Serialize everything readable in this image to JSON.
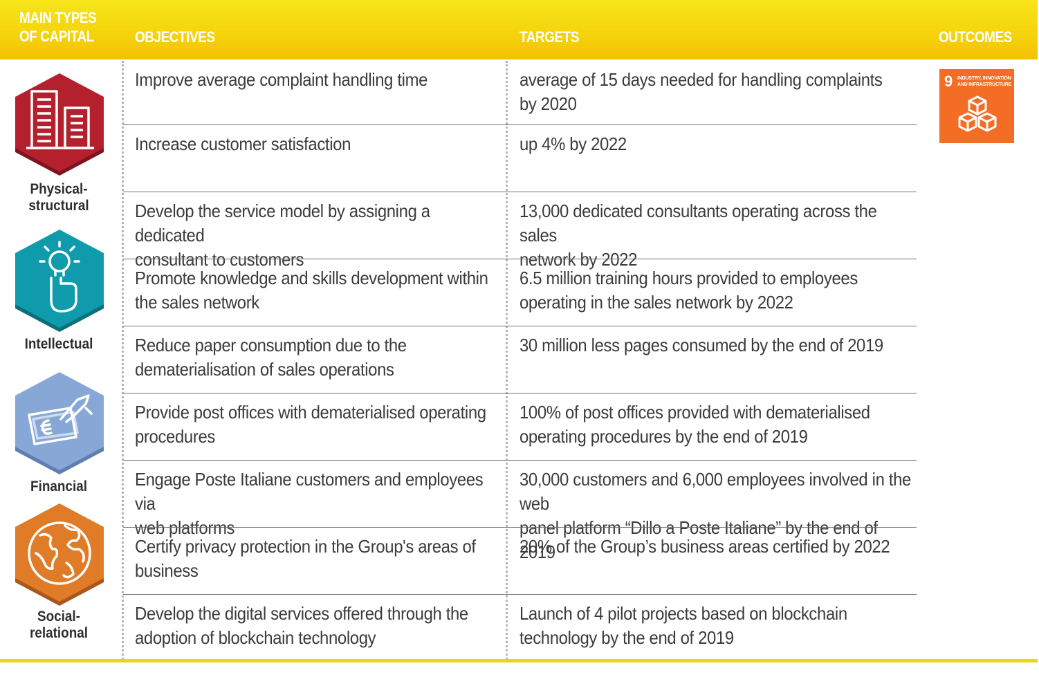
{
  "header": {
    "capital_line1": "MAIN TYPES",
    "capital_line2": "OF CAPITAL",
    "objectives": "OBJECTIVES",
    "targets": "TARGETS",
    "outcomes": "OUTCOMES"
  },
  "capitals": [
    {
      "label_line1": "Physical-",
      "label_line2": "structural",
      "color": "#b5202e",
      "icon": "buildings-icon"
    },
    {
      "label_line1": "Intellectual",
      "label_line2": "",
      "color": "#0f9bab",
      "icon": "lightbulb-hand-icon"
    },
    {
      "label_line1": "Financial",
      "label_line2": "",
      "color": "#87a7d6",
      "icon": "money-hand-icon"
    },
    {
      "label_line1": "Social-",
      "label_line2": "relational",
      "color": "#e07b27",
      "icon": "globe-icon"
    }
  ],
  "rows": [
    {
      "objective_l1": "Improve average complaint handling time",
      "objective_l2": "",
      "target_l1": "average of 15 days needed for handling complaints",
      "target_l2": "by 2020"
    },
    {
      "objective_l1": "Increase customer satisfaction",
      "objective_l2": "",
      "target_l1": "up 4% by 2022",
      "target_l2": ""
    },
    {
      "objective_l1": "Develop the service model by assigning a dedicated",
      "objective_l2": "consultant to customers",
      "target_l1": "13,000 dedicated consultants operating across the sales",
      "target_l2": "network by 2022"
    },
    {
      "objective_l1": "Promote knowledge and skills development within",
      "objective_l2": "the sales network",
      "target_l1": "6.5 million training hours provided to employees",
      "target_l2": "operating in the sales network by 2022"
    },
    {
      "objective_l1": "Reduce paper consumption due to the",
      "objective_l2": "dematerialisation of sales operations",
      "target_l1": "30 million less pages consumed by the end of 2019",
      "target_l2": ""
    },
    {
      "objective_l1": "Provide post offices with dematerialised operating",
      "objective_l2": "procedures",
      "target_l1": "100% of post offices provided with dematerialised",
      "target_l2": "operating procedures by the end of 2019"
    },
    {
      "objective_l1": "Engage Poste Italiane customers and employees via",
      "objective_l2": "web platforms",
      "target_l1": "30,000 customers and 6,000 employees involved in the web",
      "target_l2": "panel platform “Dillo a Poste Italiane” by the end of 2019"
    },
    {
      "objective_l1": "Certify privacy protection in the Group's areas of",
      "objective_l2": "business",
      "target_l1": "20% of the Group’s business areas certified by 2022",
      "target_l2": ""
    },
    {
      "objective_l1": "Develop the digital services offered through the",
      "objective_l2": "adoption of blockchain technology",
      "target_l1": "Launch of 4 pilot projects based on blockchain",
      "target_l2": "technology by the end of 2019"
    }
  ],
  "sdg": {
    "number": "9",
    "text": "INDUSTRY, INNOVATION AND INFRASTRUCTURE",
    "color": "#f36d25",
    "icon": "cubes-icon"
  },
  "colors": {
    "header_yellow": "#f6d40c",
    "rule_gray": "#6e6e6e",
    "dots_gray": "#b4b4b4"
  }
}
